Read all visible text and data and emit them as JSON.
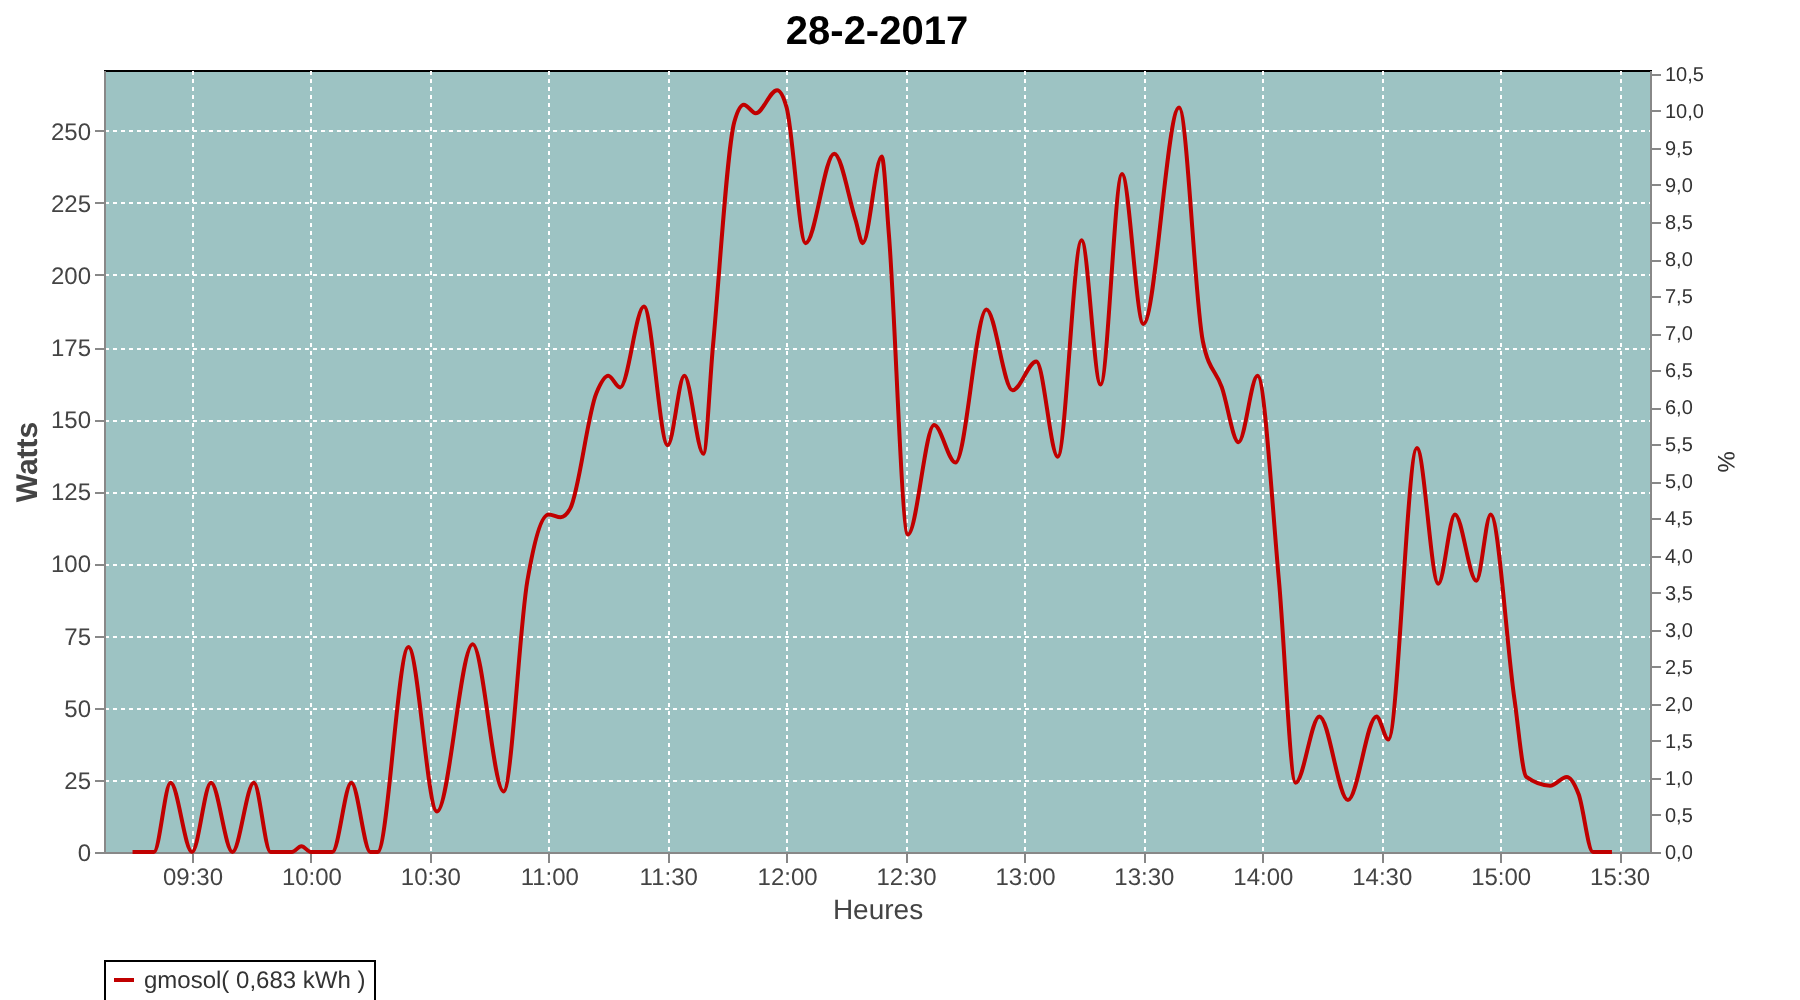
{
  "chart_data": {
    "type": "line",
    "title": "28-2-2017",
    "xlabel": "Heures",
    "ylabel": "Watts",
    "y2label": "%",
    "xlim": [
      9.13,
      15.63
    ],
    "ylim": [
      0,
      271
    ],
    "y2lim": [
      0,
      10.55
    ],
    "xticks": [
      {
        "value": 9.5,
        "label": "09:30"
      },
      {
        "value": 10,
        "label": "10:00"
      },
      {
        "value": 10.5,
        "label": "10:30"
      },
      {
        "value": 11,
        "label": "11:00"
      },
      {
        "value": 11.5,
        "label": "11:30"
      },
      {
        "value": 12,
        "label": "12:00"
      },
      {
        "value": 12.5,
        "label": "12:30"
      },
      {
        "value": 13,
        "label": "13:00"
      },
      {
        "value": 13.5,
        "label": "13:30"
      },
      {
        "value": 14,
        "label": "14:00"
      },
      {
        "value": 14.5,
        "label": "14:30"
      },
      {
        "value": 15,
        "label": "15:00"
      },
      {
        "value": 15.5,
        "label": "15:30"
      }
    ],
    "yticks": [
      0,
      25,
      50,
      75,
      100,
      125,
      150,
      175,
      200,
      225,
      250
    ],
    "y2ticks": [
      {
        "value": 0,
        "label": "0,0"
      },
      {
        "value": 0.5,
        "label": "0,5"
      },
      {
        "value": 1,
        "label": "1,0"
      },
      {
        "value": 1.5,
        "label": "1,5"
      },
      {
        "value": 2,
        "label": "2,0"
      },
      {
        "value": 2.5,
        "label": "2,5"
      },
      {
        "value": 3,
        "label": "3,0"
      },
      {
        "value": 3.5,
        "label": "3,5"
      },
      {
        "value": 4,
        "label": "4,0"
      },
      {
        "value": 4.5,
        "label": "4,5"
      },
      {
        "value": 5,
        "label": "5,0"
      },
      {
        "value": 5.5,
        "label": "5,5"
      },
      {
        "value": 6,
        "label": "6,0"
      },
      {
        "value": 6.5,
        "label": "6,5"
      },
      {
        "value": 7,
        "label": "7,0"
      },
      {
        "value": 7.5,
        "label": "7,5"
      },
      {
        "value": 8,
        "label": "8,0"
      },
      {
        "value": 8.5,
        "label": "8,5"
      },
      {
        "value": 9,
        "label": "9,0"
      },
      {
        "value": 9.5,
        "label": "9,5"
      },
      {
        "value": 10,
        "label": "10,0"
      },
      {
        "value": 10.5,
        "label": "10,5"
      }
    ],
    "grid": true,
    "legend": "bottom",
    "line_style": "solid",
    "marker": "none",
    "series": [
      {
        "name": "gmosol( 0,683 kWh )",
        "color": "#c00000",
        "x": [
          9.25,
          9.34,
          9.41,
          9.5,
          9.58,
          9.67,
          9.76,
          9.83,
          9.92,
          9.96,
          10.0,
          10.09,
          10.17,
          10.25,
          10.28,
          10.41,
          10.53,
          10.68,
          10.81,
          10.91,
          11.0,
          11.05,
          11.09,
          11.2,
          11.25,
          11.3,
          11.4,
          11.5,
          11.57,
          11.65,
          11.69,
          11.78,
          11.82,
          11.87,
          11.96,
          12.0,
          12.08,
          12.2,
          12.29,
          12.32,
          12.4,
          12.43,
          12.51,
          12.62,
          12.71,
          12.84,
          12.95,
          13.05,
          13.14,
          13.24,
          13.32,
          13.41,
          13.5,
          13.65,
          13.75,
          13.83,
          13.9,
          13.98,
          14.07,
          14.14,
          14.24,
          14.36,
          14.48,
          14.53,
          14.65,
          14.74,
          14.81,
          14.9,
          14.96,
          15.06,
          15.11,
          15.21,
          15.28,
          15.33,
          15.39,
          15.47
        ],
        "values": [
          0,
          0,
          24,
          0,
          24,
          0,
          24,
          0,
          0,
          2,
          0,
          0,
          24,
          0,
          0,
          71,
          14,
          72,
          21,
          94,
          117,
          116,
          119,
          159,
          165,
          161,
          189,
          141,
          165,
          138,
          175,
          253,
          259,
          256,
          264,
          258,
          211,
          242,
          219,
          211,
          241,
          214,
          110,
          148,
          135,
          188,
          160,
          170,
          137,
          212,
          162,
          235,
          183,
          258,
          177,
          161,
          142,
          165,
          94,
          24,
          47,
          18,
          47,
          39,
          140,
          93,
          117,
          94,
          117,
          53,
          26,
          23,
          26,
          20,
          0,
          0
        ]
      }
    ]
  }
}
